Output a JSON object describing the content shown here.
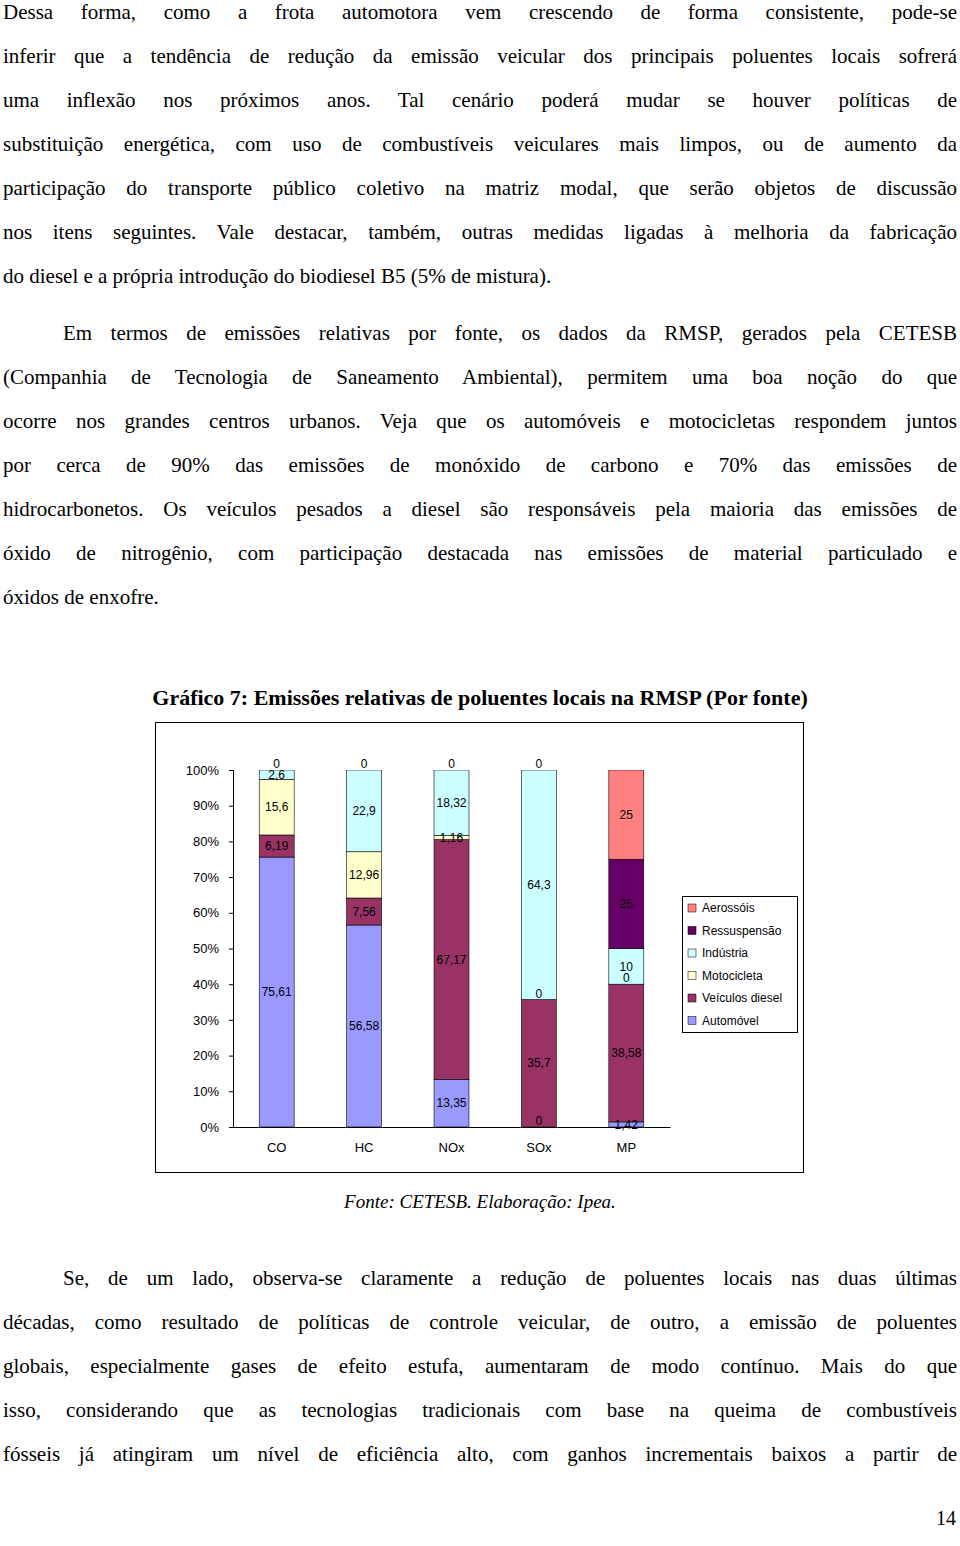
{
  "paragraphs": [
    {
      "lines": [
        "Dessa forma, como a frota automotora vem crescendo de forma consistente, pode-se",
        "inferir que a tendência de redução da emissão veicular dos principais poluentes locais sofrerá",
        "uma inflexão nos próximos anos. Tal cenário poderá mudar se houver políticas de",
        "substituição energética, com uso de combustíveis veiculares mais limpos, ou de aumento da",
        "participação do transporte público coletivo na matriz modal, que serão objetos de discussão",
        "nos itens seguintes. Vale destacar, também, outras medidas ligadas à melhoria da fabricação",
        "do diesel e a própria introdução do biodiesel B5 (5% de mistura)."
      ]
    },
    {
      "lines": [
        "Em termos de emissões relativas por fonte, os dados da RMSP, gerados pela CETESB",
        "(Companhia de Tecnologia de Saneamento Ambiental), permitem uma boa noção do que",
        "ocorre nos grandes centros urbanos. Veja que os automóveis e motocicletas respondem juntos",
        "por cerca de 90% das emissões de monóxido de carbono e 70% das emissões de",
        "hidrocarbonetos. Os veículos pesados a diesel são responsáveis pela maioria das emissões de",
        "óxido de nitrogênio, com participação destacada nas emissões de material particulado e",
        "óxidos de enxofre."
      ]
    },
    {
      "lines": [
        "Se, de um lado, observa-se claramente a redução de poluentes locais nas duas últimas",
        "décadas, como resultado de políticas de controle veicular, de outro, a emissão de poluentes",
        "globais, especialmente gases de efeito estufa, aumentaram de modo contínuo. Mais do que",
        "isso, considerando que as tecnologias tradicionais com base na queima de combustíveis",
        "fósseis já atingiram um nível de eficiência alto, com ganhos incrementais baixos a partir de"
      ]
    }
  ],
  "chart_data": {
    "type": "bar",
    "stacked": true,
    "data_labels": true,
    "grid": false,
    "legend": "right",
    "title": "Gráfico 7: Emissões relativas de poluentes locais na RMSP (Por fonte)",
    "categories": [
      "CO",
      "HC",
      "NOx",
      "SOx",
      "MP"
    ],
    "ylim": [
      0,
      100
    ],
    "yticks": [
      {
        "value": 0,
        "label": "0%"
      },
      {
        "value": 10,
        "label": "10%"
      },
      {
        "value": 20,
        "label": "20%"
      },
      {
        "value": 30,
        "label": "30%"
      },
      {
        "value": 40,
        "label": "40%"
      },
      {
        "value": 50,
        "label": "50%"
      },
      {
        "value": 60,
        "label": "60%"
      },
      {
        "value": 70,
        "label": "70%"
      },
      {
        "value": 80,
        "label": "80%"
      },
      {
        "value": 90,
        "label": "90%"
      },
      {
        "value": 100,
        "label": "100%"
      }
    ],
    "series": [
      {
        "name": "Automóvel",
        "color": "#9999ff",
        "values": [
          75.61,
          56.58,
          13.35,
          0,
          1.42
        ],
        "value_labels": [
          "75,61",
          "56,58",
          "13,35",
          "0",
          "1,42"
        ]
      },
      {
        "name": "Veículos diesel",
        "color": "#993366",
        "values": [
          6.19,
          7.56,
          67.17,
          35.7,
          38.58
        ],
        "value_labels": [
          "6,19",
          "7,56",
          "67,17",
          "35,7",
          "38,58"
        ]
      },
      {
        "name": "Motocicleta",
        "color": "#ffffcc",
        "values": [
          15.6,
          12.96,
          1.16,
          0,
          0
        ],
        "value_labels": [
          "15,6",
          "12,96",
          "1,16",
          "0",
          "0"
        ]
      },
      {
        "name": "Indústria",
        "color": "#ccffff",
        "values": [
          2.6,
          22.9,
          18.32,
          64.3,
          10
        ],
        "value_labels": [
          "2,6",
          "22,9",
          "18,32",
          "64,3",
          "10"
        ]
      },
      {
        "name": "Ressuspensão",
        "color": "#660066",
        "values": [
          0,
          0,
          0,
          0,
          25
        ]
      },
      {
        "name": "Aerossóis",
        "color": "#ff8080",
        "values": [
          null,
          null,
          null,
          null,
          25
        ]
      }
    ]
  },
  "source": "Fonte: CETESB. Elaboração: Ipea.",
  "page_number": "14"
}
